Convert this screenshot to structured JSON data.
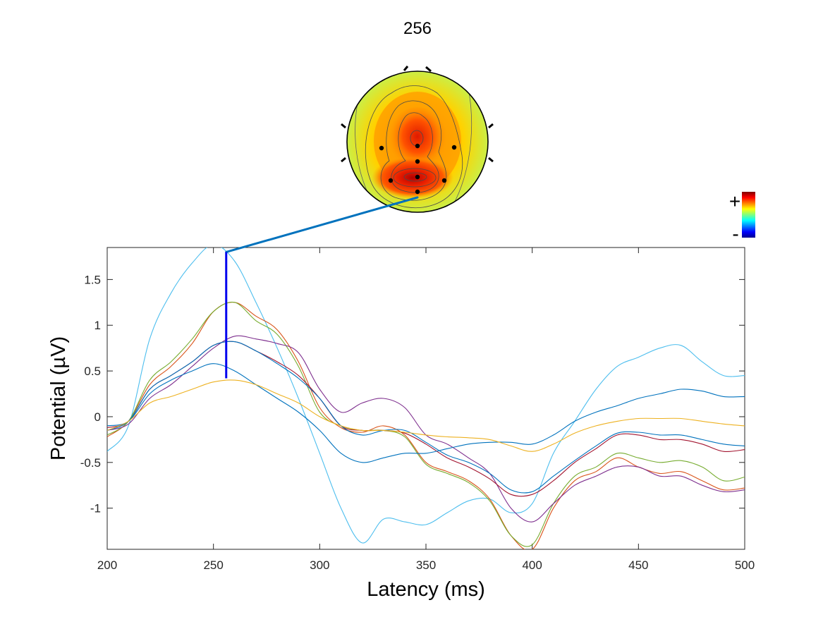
{
  "topomap": {
    "title": "256",
    "colorbar_plus": "+",
    "colorbar_minus": "-",
    "colormap": "jet",
    "channel_dots": 9
  },
  "chart_data": {
    "type": "line",
    "xlabel": "Latency (ms)",
    "ylabel": "Potential (µV)",
    "xlim": [
      200,
      500
    ],
    "ylim": [
      -1.45,
      1.85
    ],
    "xticks": [
      200,
      250,
      300,
      350,
      400,
      450,
      500
    ],
    "yticks": [
      -1,
      -0.5,
      0,
      0.5,
      1,
      1.5
    ],
    "grid": false,
    "box": true,
    "marker_latency": 256,
    "marker_range": [
      0.42,
      1.8
    ],
    "marker_color": "#0000ee",
    "connector_color": "#0072bd",
    "x": [
      200,
      210,
      220,
      230,
      240,
      250,
      260,
      270,
      280,
      290,
      300,
      310,
      320,
      330,
      340,
      350,
      360,
      370,
      380,
      390,
      400,
      410,
      420,
      430,
      440,
      450,
      460,
      470,
      480,
      490,
      500
    ],
    "series": [
      {
        "color": "#4dbeee",
        "values": [
          -0.38,
          -0.1,
          0.85,
          1.35,
          1.68,
          1.88,
          1.7,
          1.25,
          0.75,
          0.2,
          -0.4,
          -1.0,
          -1.38,
          -1.12,
          -1.15,
          -1.18,
          -1.05,
          -0.92,
          -0.9,
          -1.05,
          -0.95,
          -0.4,
          -0.05,
          0.3,
          0.55,
          0.65,
          0.75,
          0.78,
          0.6,
          0.45,
          0.45
        ]
      },
      {
        "color": "#d95319",
        "values": [
          -0.22,
          -0.05,
          0.35,
          0.55,
          0.8,
          1.15,
          1.25,
          1.1,
          0.95,
          0.6,
          0.1,
          -0.12,
          -0.17,
          -0.1,
          -0.2,
          -0.5,
          -0.6,
          -0.7,
          -0.9,
          -1.3,
          -1.45,
          -1.0,
          -0.7,
          -0.6,
          -0.45,
          -0.55,
          -0.62,
          -0.6,
          -0.7,
          -0.8,
          -0.78
        ]
      },
      {
        "color": "#77ac30",
        "values": [
          -0.2,
          -0.05,
          0.4,
          0.6,
          0.85,
          1.15,
          1.25,
          1.05,
          0.9,
          0.55,
          0.05,
          -0.1,
          -0.15,
          -0.15,
          -0.22,
          -0.52,
          -0.62,
          -0.72,
          -0.92,
          -1.3,
          -1.4,
          -0.95,
          -0.65,
          -0.55,
          -0.4,
          -0.45,
          -0.5,
          -0.48,
          -0.55,
          -0.7,
          -0.66
        ]
      },
      {
        "color": "#7e2f8e",
        "values": [
          -0.15,
          -0.08,
          0.2,
          0.35,
          0.55,
          0.75,
          0.88,
          0.85,
          0.8,
          0.7,
          0.3,
          0.05,
          0.15,
          0.2,
          0.1,
          -0.2,
          -0.3,
          -0.45,
          -0.62,
          -1.0,
          -1.15,
          -0.95,
          -0.75,
          -0.65,
          -0.55,
          -0.55,
          -0.65,
          -0.65,
          -0.75,
          -0.82,
          -0.8
        ]
      },
      {
        "color": "#a2142f",
        "values": [
          -0.12,
          -0.05,
          0.3,
          0.45,
          0.6,
          0.78,
          0.82,
          0.72,
          0.6,
          0.45,
          0.2,
          -0.1,
          -0.15,
          -0.15,
          -0.18,
          -0.3,
          -0.45,
          -0.55,
          -0.68,
          -0.85,
          -0.85,
          -0.7,
          -0.5,
          -0.35,
          -0.2,
          -0.2,
          -0.25,
          -0.25,
          -0.3,
          -0.38,
          -0.36
        ]
      },
      {
        "color": "#0072bd",
        "values": [
          -0.15,
          -0.05,
          0.3,
          0.45,
          0.6,
          0.78,
          0.82,
          0.72,
          0.58,
          0.42,
          0.2,
          -0.1,
          -0.2,
          -0.15,
          -0.15,
          -0.28,
          -0.42,
          -0.5,
          -0.62,
          -0.8,
          -0.82,
          -0.65,
          -0.48,
          -0.32,
          -0.18,
          -0.17,
          -0.2,
          -0.2,
          -0.25,
          -0.3,
          -0.32
        ]
      },
      {
        "color": "#0072bd",
        "values": [
          -0.1,
          -0.05,
          0.25,
          0.4,
          0.5,
          0.58,
          0.5,
          0.35,
          0.2,
          0.05,
          -0.15,
          -0.4,
          -0.5,
          -0.45,
          -0.4,
          -0.4,
          -0.35,
          -0.3,
          -0.28,
          -0.28,
          -0.3,
          -0.2,
          -0.05,
          0.05,
          0.12,
          0.2,
          0.25,
          0.3,
          0.28,
          0.22,
          0.22
        ]
      },
      {
        "color": "#edb120",
        "values": [
          -0.15,
          -0.05,
          0.15,
          0.22,
          0.3,
          0.38,
          0.4,
          0.35,
          0.25,
          0.15,
          0.0,
          -0.1,
          -0.15,
          -0.15,
          -0.17,
          -0.2,
          -0.22,
          -0.23,
          -0.25,
          -0.32,
          -0.38,
          -0.3,
          -0.18,
          -0.1,
          -0.05,
          -0.02,
          -0.02,
          -0.02,
          -0.05,
          -0.08,
          -0.1
        ]
      }
    ]
  }
}
